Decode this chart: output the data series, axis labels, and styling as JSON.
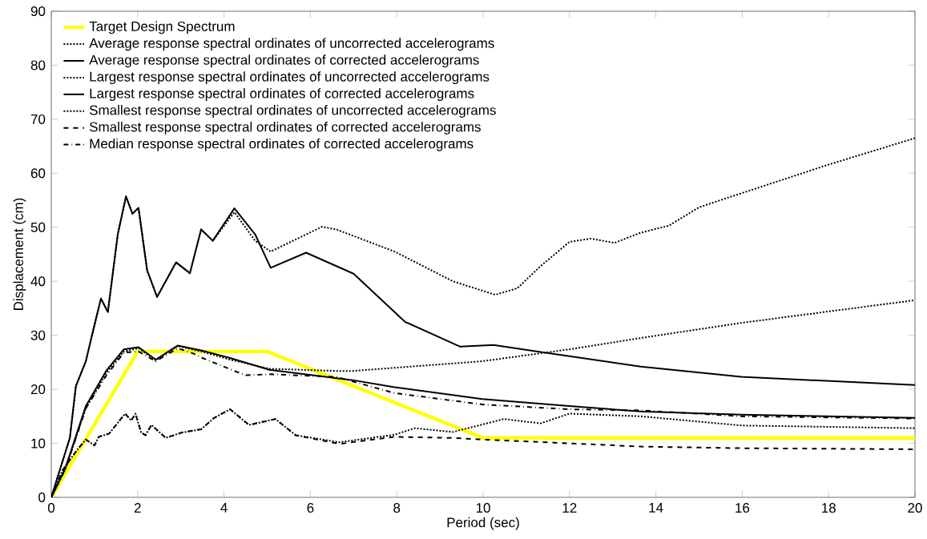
{
  "chart_data": {
    "type": "line",
    "xlabel": "Period (sec)",
    "ylabel": "Displacement (cm)",
    "xlim": [
      0,
      20
    ],
    "ylim": [
      0,
      90
    ],
    "xticks": [
      0,
      2,
      4,
      6,
      8,
      10,
      12,
      14,
      16,
      18,
      20
    ],
    "yticks": [
      0,
      10,
      20,
      30,
      40,
      50,
      60,
      70,
      80,
      90
    ],
    "grid": false,
    "legend": "top left",
    "marker": "none",
    "series": [
      {
        "name": "Target Design Spectrum",
        "color": "#ffff00",
        "line_style": "solid",
        "x": [
          0,
          2,
          5,
          10,
          20
        ],
        "values": [
          0,
          27,
          27,
          11,
          11
        ]
      },
      {
        "name": "Average response spectral ordinates of uncorrected accelerograms",
        "color": "#000000",
        "line_style": "dotted",
        "x": [
          0,
          0.33,
          0.8,
          1.27,
          1.68,
          2.02,
          2.42,
          2.93,
          3.47,
          4.14,
          5.05,
          6.6,
          6.98,
          9.98,
          12.0,
          13.65,
          15.98,
          20
        ],
        "values": [
          0,
          5.3,
          16.5,
          23,
          27,
          27.6,
          25.4,
          28,
          27,
          25.5,
          23.8,
          23.4,
          23.4,
          25.2,
          27.4,
          29.5,
          32.3,
          36.5
        ]
      },
      {
        "name": "Average response spectral ordinates of corrected accelerograms",
        "color": "#000000",
        "line_style": "solid",
        "x": [
          0,
          0.33,
          0.8,
          1.27,
          1.68,
          2.02,
          2.42,
          2.93,
          3.47,
          4.14,
          5.05,
          6.98,
          7.95,
          9.98,
          12.0,
          13.65,
          15.98,
          20
        ],
        "values": [
          0,
          5.5,
          16.9,
          23.4,
          27.4,
          27.8,
          25.5,
          28.1,
          27.2,
          25.8,
          23.6,
          21.7,
          20.4,
          18.2,
          16.9,
          15.9,
          15.3,
          14.7
        ]
      },
      {
        "name": "Largest response spectral ordinates of uncorrected accelerograms",
        "color": "#000000",
        "line_style": "dotted",
        "x": [
          0,
          0.43,
          0.57,
          0.8,
          0.97,
          1.15,
          1.31,
          1.54,
          1.73,
          1.88,
          2.02,
          2.22,
          2.45,
          2.89,
          3.21,
          3.47,
          3.74,
          4.24,
          4.72,
          5.08,
          6.27,
          6.6,
          7.95,
          9.3,
          10.28,
          10.79,
          11.33,
          12.0,
          12.5,
          13.04,
          13.65,
          14.3,
          15.0,
          15.98,
          18.0,
          20
        ],
        "values": [
          0,
          11,
          20.6,
          25.2,
          30.9,
          36.8,
          34.3,
          48.7,
          55.7,
          52.5,
          53.6,
          42,
          37.1,
          43.5,
          41.5,
          49.6,
          47.5,
          52.8,
          47.5,
          45.5,
          50.1,
          49.6,
          45.5,
          40,
          37.5,
          38.7,
          42.8,
          47.3,
          47.9,
          47.1,
          49,
          50.3,
          53.7,
          56.3,
          61.6,
          66.5
        ]
      },
      {
        "name": "Largest response spectral ordinates of corrected accelerograms",
        "color": "#000000",
        "line_style": "solid",
        "x": [
          0,
          0.43,
          0.57,
          0.8,
          0.97,
          1.15,
          1.31,
          1.54,
          1.73,
          1.88,
          2.02,
          2.22,
          2.45,
          2.89,
          3.21,
          3.47,
          3.74,
          4.24,
          4.72,
          5.08,
          5.9,
          7.0,
          8.19,
          9.47,
          10.24,
          11.33,
          13.65,
          15.98,
          20
        ],
        "values": [
          0,
          11,
          20.6,
          25.2,
          30.9,
          36.8,
          34.3,
          48.7,
          55.7,
          52.5,
          53.6,
          42,
          37.1,
          43.5,
          41.5,
          49.6,
          47.5,
          53.5,
          48.7,
          42.5,
          45.3,
          41.4,
          32.5,
          27.9,
          28.2,
          26.9,
          24.2,
          22.3,
          20.8
        ]
      },
      {
        "name": "Smallest response spectral ordinates of uncorrected accelerograms",
        "color": "#000000",
        "line_style": "dotted",
        "x": [
          0,
          0.26,
          0.6,
          0.8,
          1.0,
          1.1,
          1.34,
          1.71,
          1.85,
          1.95,
          2.08,
          2.18,
          2.32,
          2.65,
          3.03,
          3.47,
          3.77,
          4.14,
          4.58,
          5.19,
          5.66,
          6.67,
          7.95,
          8.42,
          9.3,
          10.48,
          11.33,
          12.0,
          13.65,
          15.98,
          20
        ],
        "values": [
          0,
          5,
          8.8,
          10.7,
          9.6,
          11.2,
          11.8,
          15.5,
          14.2,
          15.5,
          12,
          11.5,
          13.4,
          11,
          12,
          12.6,
          14.7,
          16.3,
          13.4,
          14.5,
          11.5,
          10.2,
          11.6,
          12.8,
          12.1,
          14.5,
          13.7,
          15.5,
          15,
          13.3,
          12.8
        ]
      },
      {
        "name": "Smallest response spectral ordinates of corrected accelerograms",
        "color": "#000000",
        "line_style": "dashed",
        "x": [
          0,
          0.26,
          0.6,
          0.8,
          1.0,
          1.1,
          1.34,
          1.71,
          1.85,
          1.95,
          2.08,
          2.18,
          2.32,
          2.65,
          3.03,
          3.47,
          3.77,
          4.14,
          4.58,
          5.19,
          5.66,
          6.67,
          7.95,
          9.3,
          9.98,
          12.0,
          13.65,
          15.98,
          20
        ],
        "values": [
          0,
          5,
          8.8,
          10.7,
          9.6,
          11.2,
          11.8,
          15.5,
          14.2,
          15.5,
          12,
          11.5,
          13.4,
          11,
          12,
          12.6,
          14.7,
          16.3,
          13.4,
          14.5,
          11.5,
          9.9,
          11.2,
          11.0,
          10.7,
          10.0,
          9.4,
          9.1,
          8.9
        ]
      },
      {
        "name": "Median response spectral ordinates of corrected accelerograms",
        "color": "#000000",
        "line_style": "dashdot",
        "x": [
          0,
          0.33,
          0.8,
          1.27,
          1.68,
          2.02,
          2.42,
          2.93,
          3.3,
          3.5,
          4.24,
          4.51,
          5.05,
          6.6,
          7.95,
          9.98,
          12.0,
          13.65,
          15.98,
          20
        ],
        "values": [
          0,
          5.3,
          16.5,
          22.5,
          26.8,
          27,
          25.2,
          27.6,
          26.6,
          25.8,
          23.4,
          22.6,
          22.8,
          22.3,
          19.3,
          17.2,
          16.3,
          16.1,
          15,
          14.6
        ]
      }
    ]
  }
}
